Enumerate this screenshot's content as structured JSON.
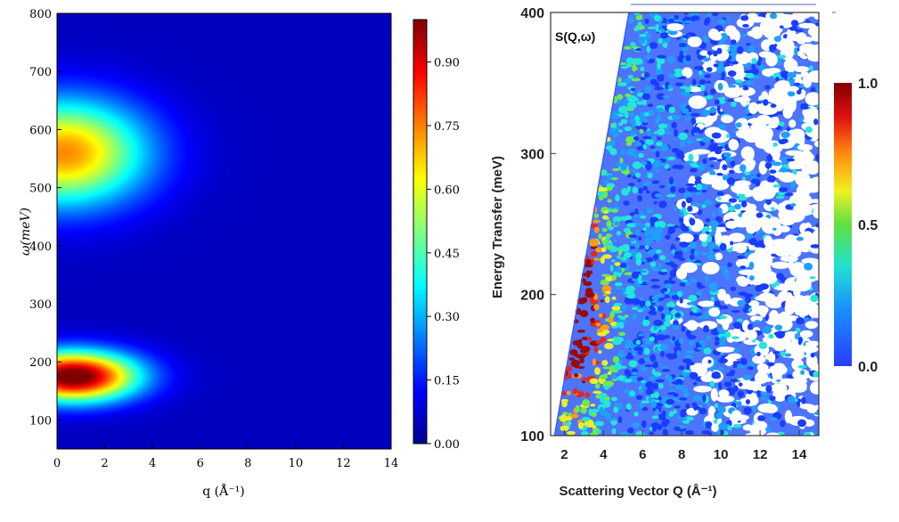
{
  "chart_data": [
    {
      "type": "heatmap",
      "panel": "left",
      "title": "",
      "xlabel": "q (Å⁻¹)",
      "ylabel": "ω(meV)",
      "xlim": [
        0,
        14
      ],
      "ylim": [
        50,
        800
      ],
      "xticks": [
        "0",
        "2",
        "4",
        "6",
        "8",
        "10",
        "12",
        "14"
      ],
      "yticks": [
        "100",
        "200",
        "300",
        "400",
        "500",
        "600",
        "700",
        "800"
      ],
      "colorbar": {
        "range": [
          0.0,
          1.0
        ],
        "ticks": [
          "0.00",
          "0.15",
          "0.30",
          "0.45",
          "0.60",
          "0.75",
          "0.90"
        ],
        "colormap": "jet"
      },
      "peaks": [
        {
          "q": 0.7,
          "omega": 175,
          "intensity": 1.0,
          "q_width": 2.6,
          "omega_width": 42
        },
        {
          "q": 0.3,
          "omega": 560,
          "intensity": 0.68,
          "q_width": 3.4,
          "omega_width": 90
        }
      ]
    },
    {
      "type": "heatmap",
      "panel": "right",
      "title": "S(Q,ω)",
      "xlabel": "Scattering Vector Q (Å⁻¹)",
      "ylabel": "Energy Transfer (meV)",
      "xlim": [
        1.3,
        15.0
      ],
      "ylim": [
        100,
        400
      ],
      "xticks": [
        "2",
        "4",
        "6",
        "8",
        "10",
        "12",
        "14"
      ],
      "yticks": [
        "100",
        "200",
        "300",
        "400"
      ],
      "colorbar": {
        "range": [
          0.0,
          1.0
        ],
        "ticks": [
          "0.0",
          "0.5",
          "1.0"
        ],
        "colormap": "jet"
      },
      "kinematic_edge": {
        "q_at_100meV": 1.5,
        "q_at_400meV": 5.3
      },
      "peak": {
        "q": 2.8,
        "energy": 185,
        "intensity": 0.8
      }
    }
  ]
}
